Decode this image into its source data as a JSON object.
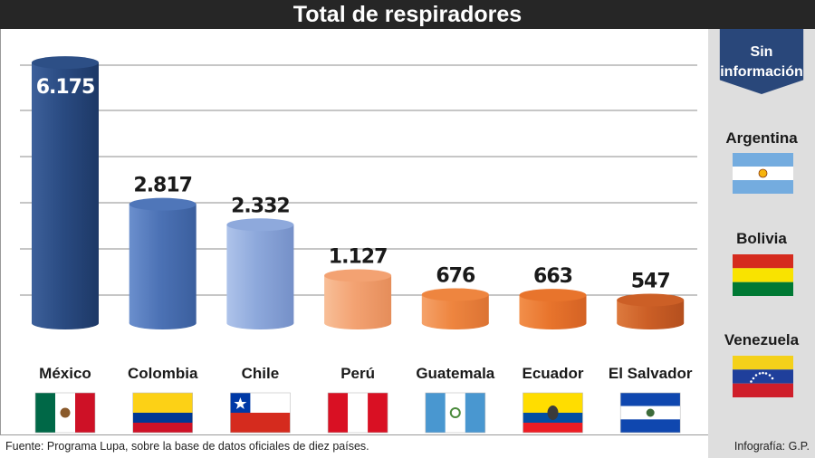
{
  "title": "Total de respiradores",
  "chart_data": {
    "type": "bar",
    "categories": [
      "México",
      "Colombia",
      "Chile",
      "Perú",
      "Guatemala",
      "Ecuador",
      "El Salvador"
    ],
    "values": [
      6175,
      2817,
      2332,
      1127,
      676,
      663,
      547
    ],
    "value_labels": [
      "6.175",
      "2.817",
      "2.332",
      "1.127",
      "676",
      "663",
      "547"
    ],
    "colors": [
      "#2d4f86",
      "#4f76b9",
      "#8ea9dc",
      "#f3a272",
      "#ee853f",
      "#e8742c",
      "#cc5f26"
    ],
    "ylim": [
      0,
      6500
    ],
    "grid": true
  },
  "flags": {
    "mexico": "flag-mexico-icon",
    "colombia": "flag-colombia-icon",
    "chile": "flag-chile-icon",
    "peru": "flag-peru-icon",
    "guatemala": "flag-guatemala-icon",
    "ecuador": "flag-ecuador-icon",
    "el_salvador": "flag-el-salvador-icon"
  },
  "side_panel": {
    "title_line1": "Sin",
    "title_line2": "información",
    "countries": [
      "Argentina",
      "Bolivia",
      "Venezuela"
    ]
  },
  "footer": {
    "source": "Fuente: Programa Lupa, sobre la base de datos oficiales de diez países.",
    "credit": "Infografía: G.P."
  }
}
